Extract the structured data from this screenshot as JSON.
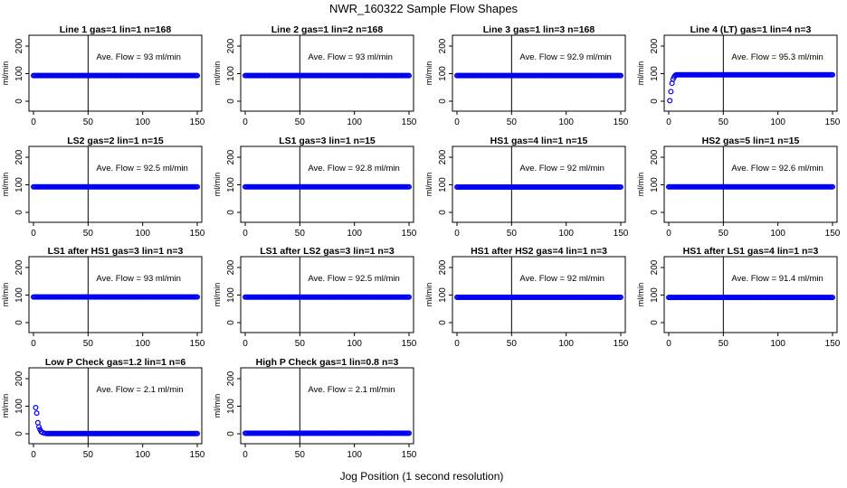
{
  "figure": {
    "title": "NWR_160322  Sample Flow Shapes",
    "xlabel": "Jog Position (1 second resolution)"
  },
  "colors": {
    "points": "#0000ee",
    "axes": "#000000",
    "background": "#ffffff"
  },
  "chart_data": [
    {
      "type": "scatter",
      "title": "Line 1 gas=1 lin=1 n=168",
      "ylabel": "ml/min",
      "xlim": [
        0,
        150
      ],
      "ylim": [
        0,
        200
      ],
      "xticks": [
        0,
        50,
        100,
        150
      ],
      "yticks": [
        0,
        100,
        200
      ],
      "annotation": "Ave. Flow = 93  ml/min",
      "vline_x": 50,
      "series": [
        {
          "x": [
            0,
            150
          ],
          "y": [
            93,
            93
          ],
          "shape": "constant"
        }
      ]
    },
    {
      "type": "scatter",
      "title": "Line 2 gas=1 lin=2 n=168",
      "ylabel": "ml/min",
      "xlim": [
        0,
        150
      ],
      "ylim": [
        0,
        200
      ],
      "xticks": [
        0,
        50,
        100,
        150
      ],
      "yticks": [
        0,
        100,
        200
      ],
      "annotation": "Ave. Flow = 93  ml/min",
      "vline_x": 50,
      "series": [
        {
          "x": [
            0,
            150
          ],
          "y": [
            93,
            93
          ],
          "shape": "constant"
        }
      ]
    },
    {
      "type": "scatter",
      "title": "Line 3 gas=1 lin=3 n=168",
      "ylabel": "ml/min",
      "xlim": [
        0,
        150
      ],
      "ylim": [
        0,
        200
      ],
      "xticks": [
        0,
        50,
        100,
        150
      ],
      "yticks": [
        0,
        100,
        200
      ],
      "annotation": "Ave. Flow = 92.9  ml/min",
      "vline_x": 50,
      "series": [
        {
          "x": [
            0,
            150
          ],
          "y": [
            92.9,
            92.9
          ],
          "shape": "constant"
        }
      ]
    },
    {
      "type": "scatter",
      "title": "Line 4 (LT) gas=1 lin=4 n=3",
      "ylabel": "ml/min",
      "xlim": [
        0,
        150
      ],
      "ylim": [
        0,
        200
      ],
      "xticks": [
        0,
        50,
        100,
        150
      ],
      "yticks": [
        0,
        100,
        200
      ],
      "annotation": "Ave. Flow = 95.3  ml/min",
      "vline_x": 50,
      "series": [
        {
          "x": [
            1,
            2,
            3,
            4,
            5,
            6,
            7,
            150
          ],
          "y": [
            2,
            35,
            65,
            80,
            88,
            94,
            96,
            96
          ],
          "shape": "rise_then_constant"
        }
      ]
    },
    {
      "type": "scatter",
      "title": "LS2 gas=2 lin=1 n=15",
      "ylabel": "ml/min",
      "xlim": [
        0,
        150
      ],
      "ylim": [
        0,
        200
      ],
      "xticks": [
        0,
        50,
        100,
        150
      ],
      "yticks": [
        0,
        100,
        200
      ],
      "annotation": "Ave. Flow = 92.5  ml/min",
      "vline_x": 50,
      "series": [
        {
          "x": [
            0,
            150
          ],
          "y": [
            92.5,
            92.5
          ],
          "shape": "constant"
        }
      ]
    },
    {
      "type": "scatter",
      "title": "LS1 gas=3 lin=1 n=15",
      "ylabel": "ml/min",
      "xlim": [
        0,
        150
      ],
      "ylim": [
        0,
        200
      ],
      "xticks": [
        0,
        50,
        100,
        150
      ],
      "yticks": [
        0,
        100,
        200
      ],
      "annotation": "Ave. Flow = 92.8  ml/min",
      "vline_x": 50,
      "series": [
        {
          "x": [
            0,
            150
          ],
          "y": [
            92.8,
            92.8
          ],
          "shape": "constant"
        }
      ]
    },
    {
      "type": "scatter",
      "title": "HS1 gas=4 lin=1 n=15",
      "ylabel": "ml/min",
      "xlim": [
        0,
        150
      ],
      "ylim": [
        0,
        200
      ],
      "xticks": [
        0,
        50,
        100,
        150
      ],
      "yticks": [
        0,
        100,
        200
      ],
      "annotation": "Ave. Flow = 92  ml/min",
      "vline_x": 50,
      "series": [
        {
          "x": [
            0,
            150
          ],
          "y": [
            92,
            92
          ],
          "shape": "constant"
        }
      ]
    },
    {
      "type": "scatter",
      "title": "HS2 gas=5 lin=1 n=15",
      "ylabel": "ml/min",
      "xlim": [
        0,
        150
      ],
      "ylim": [
        0,
        200
      ],
      "xticks": [
        0,
        50,
        100,
        150
      ],
      "yticks": [
        0,
        100,
        200
      ],
      "annotation": "Ave. Flow = 92.6  ml/min",
      "vline_x": 50,
      "series": [
        {
          "x": [
            0,
            150
          ],
          "y": [
            92.6,
            92.6
          ],
          "shape": "constant"
        }
      ]
    },
    {
      "type": "scatter",
      "title": "LS1 after HS1 gas=3 lin=1 n=3",
      "ylabel": "ml/min",
      "xlim": [
        0,
        150
      ],
      "ylim": [
        0,
        200
      ],
      "xticks": [
        0,
        50,
        100,
        150
      ],
      "yticks": [
        0,
        100,
        200
      ],
      "annotation": "Ave. Flow = 93  ml/min",
      "vline_x": 50,
      "series": [
        {
          "x": [
            0,
            150
          ],
          "y": [
            93,
            93
          ],
          "shape": "constant"
        }
      ]
    },
    {
      "type": "scatter",
      "title": "LS1 after LS2 gas=3 lin=1 n=3",
      "ylabel": "ml/min",
      "xlim": [
        0,
        150
      ],
      "ylim": [
        0,
        200
      ],
      "xticks": [
        0,
        50,
        100,
        150
      ],
      "yticks": [
        0,
        100,
        200
      ],
      "annotation": "Ave. Flow = 92.5  ml/min",
      "vline_x": 50,
      "series": [
        {
          "x": [
            0,
            150
          ],
          "y": [
            92.5,
            92.5
          ],
          "shape": "constant"
        }
      ]
    },
    {
      "type": "scatter",
      "title": "HS1 after HS2 gas=4 lin=1 n=3",
      "ylabel": "ml/min",
      "xlim": [
        0,
        150
      ],
      "ylim": [
        0,
        200
      ],
      "xticks": [
        0,
        50,
        100,
        150
      ],
      "yticks": [
        0,
        100,
        200
      ],
      "annotation": "Ave. Flow = 92  ml/min",
      "vline_x": 50,
      "series": [
        {
          "x": [
            0,
            150
          ],
          "y": [
            92,
            92
          ],
          "shape": "constant"
        }
      ]
    },
    {
      "type": "scatter",
      "title": "HS1 after LS1 gas=4 lin=1 n=3",
      "ylabel": "ml/min",
      "xlim": [
        0,
        150
      ],
      "ylim": [
        0,
        200
      ],
      "xticks": [
        0,
        50,
        100,
        150
      ],
      "yticks": [
        0,
        100,
        200
      ],
      "annotation": "Ave. Flow = 91.4  ml/min",
      "vline_x": 50,
      "series": [
        {
          "x": [
            0,
            150
          ],
          "y": [
            91.4,
            91.4
          ],
          "shape": "constant"
        }
      ]
    },
    {
      "type": "scatter",
      "title": "Low P Check gas=1.2 lin=1 n=6",
      "ylabel": "ml/min",
      "xlim": [
        0,
        150
      ],
      "ylim": [
        0,
        200
      ],
      "xticks": [
        0,
        50,
        100,
        150
      ],
      "yticks": [
        0,
        100,
        200
      ],
      "annotation": "Ave. Flow = 2.1  ml/min",
      "vline_x": 50,
      "series": [
        {
          "x": [
            2,
            3,
            4,
            5,
            6,
            7,
            8,
            10,
            12,
            150
          ],
          "y": [
            95,
            75,
            40,
            25,
            15,
            8,
            5,
            2,
            1,
            1
          ],
          "shape": "decay_then_constant"
        }
      ]
    },
    {
      "type": "scatter",
      "title": "High P Check gas=1 lin=0.8 n=3",
      "ylabel": "ml/min",
      "xlim": [
        0,
        150
      ],
      "ylim": [
        0,
        200
      ],
      "xticks": [
        0,
        50,
        100,
        150
      ],
      "yticks": [
        0,
        100,
        200
      ],
      "annotation": "Ave. Flow = 2.1  ml/min",
      "vline_x": 50,
      "series": [
        {
          "x": [
            0,
            150
          ],
          "y": [
            2.1,
            2.1
          ],
          "shape": "constant"
        }
      ]
    }
  ]
}
